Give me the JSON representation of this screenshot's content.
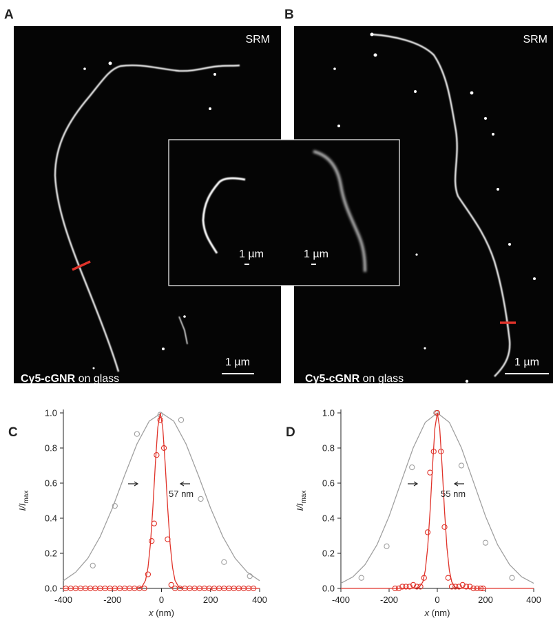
{
  "panels": [
    {
      "label": "A",
      "method": "SRM",
      "scale_bar": "1 µm",
      "caption_bold": "Cy5-cGNR",
      "caption_rest": " on glass"
    },
    {
      "label": "B",
      "method": "SRM",
      "scale_bar": "1 µm",
      "caption_bold": "Cy5-cGNR",
      "caption_rest": " on glass"
    }
  ],
  "inset": {
    "scale_bars": [
      "1 µm",
      "1 µm"
    ]
  },
  "chart_data": [
    {
      "type": "line",
      "panel_label": "C",
      "x_label": [
        "x",
        " (nm)"
      ],
      "y_label": [
        "I/I",
        "max"
      ],
      "annotation": "57 nm",
      "xlim": [
        -400,
        400
      ],
      "xticks": [
        -400,
        -200,
        0,
        200,
        400
      ],
      "ylim": [
        0,
        1
      ],
      "yticks": [
        {
          "value": 0,
          "label": "0.0"
        },
        {
          "value": 0.2,
          "label": "0.2"
        },
        {
          "value": 0.4,
          "label": "0.4"
        },
        {
          "value": 0.6,
          "label": "0.6"
        },
        {
          "value": 0.8,
          "label": "0.8"
        },
        {
          "value": 1,
          "label": "1.0"
        }
      ],
      "series": [
        {
          "style": "line",
          "color": "#a0a0a0",
          "x": [
            -400,
            -350,
            -300,
            -250,
            -200,
            -150,
            -100,
            -50,
            0,
            50,
            100,
            150,
            200,
            250,
            300,
            350,
            400
          ],
          "values": [
            0.044,
            0.092,
            0.172,
            0.295,
            0.458,
            0.645,
            0.823,
            0.953,
            1,
            0.953,
            0.823,
            0.645,
            0.458,
            0.295,
            0.172,
            0.092,
            0.044
          ]
        },
        {
          "style": "markers",
          "color": "#a0a0a0",
          "x": [
            -280,
            -190,
            -100,
            -5,
            80,
            160,
            255,
            360
          ],
          "values": [
            0.13,
            0.47,
            0.88,
            0.99,
            0.96,
            0.51,
            0.15,
            0.07
          ]
        },
        {
          "style": "line",
          "color": "#e0332a",
          "x": [
            -400,
            -105,
            -80,
            -65,
            -55,
            -45,
            -35,
            -25,
            -15,
            -5,
            5,
            15,
            25,
            35,
            45,
            55,
            70,
            95,
            400
          ],
          "values": [
            0,
            0,
            0.008,
            0.046,
            0.119,
            0.255,
            0.464,
            0.711,
            0.918,
            1,
            0.918,
            0.711,
            0.464,
            0.255,
            0.119,
            0.046,
            0.008,
            0,
            0
          ]
        },
        {
          "style": "markers",
          "color": "#e0332a",
          "x": [
            -390,
            -370,
            -350,
            -330,
            -310,
            -290,
            -270,
            -250,
            -230,
            -210,
            -190,
            -170,
            -150,
            -130,
            -110,
            -90,
            -70,
            -55,
            -40,
            -30,
            -20,
            -5,
            10,
            25,
            40,
            55,
            75,
            95,
            115,
            135,
            155,
            175,
            195,
            215,
            235,
            255,
            275,
            295,
            315,
            335,
            355,
            375
          ],
          "values": [
            0,
            0,
            0,
            0,
            0,
            0,
            0,
            0,
            0,
            0,
            0,
            0,
            0,
            0,
            0,
            0,
            0,
            0.08,
            0.27,
            0.37,
            0.76,
            0.96,
            0.8,
            0.28,
            0.02,
            0,
            0,
            0,
            0,
            0,
            0,
            0,
            0,
            0,
            0,
            0,
            0,
            0,
            0,
            0,
            0,
            0
          ]
        }
      ]
    },
    {
      "type": "line",
      "panel_label": "D",
      "x_label": [
        "x",
        " (nm)"
      ],
      "y_label": [
        "I/I",
        "max"
      ],
      "annotation": "55 nm",
      "xlim": [
        -400,
        400
      ],
      "xticks": [
        -400,
        -200,
        0,
        200,
        400
      ],
      "ylim": [
        0,
        1
      ],
      "yticks": [
        {
          "value": 0,
          "label": "0.0"
        },
        {
          "value": 0.2,
          "label": "0.2"
        },
        {
          "value": 0.4,
          "label": "0.4"
        },
        {
          "value": 0.6,
          "label": "0.6"
        },
        {
          "value": 0.8,
          "label": "0.8"
        },
        {
          "value": 1,
          "label": "1.0"
        }
      ],
      "series": [
        {
          "style": "line",
          "color": "#a0a0a0",
          "x": [
            -400,
            -350,
            -300,
            -250,
            -200,
            -150,
            -100,
            -50,
            0,
            50,
            100,
            150,
            200,
            250,
            300,
            350,
            400
          ],
          "values": [
            0.029,
            0.066,
            0.135,
            0.249,
            0.411,
            0.607,
            0.801,
            0.946,
            1,
            0.946,
            0.801,
            0.607,
            0.411,
            0.249,
            0.135,
            0.066,
            0.029
          ]
        },
        {
          "style": "markers",
          "color": "#a0a0a0",
          "x": [
            -315,
            -210,
            -105,
            -5,
            100,
            200,
            310
          ],
          "values": [
            0.06,
            0.24,
            0.69,
            1,
            0.7,
            0.26,
            0.06
          ]
        },
        {
          "style": "line",
          "color": "#e0332a",
          "x": [
            -400,
            -100,
            -75,
            -60,
            -50,
            -40,
            -30,
            -20,
            -10,
            0,
            10,
            20,
            30,
            40,
            50,
            60,
            75,
            100,
            400
          ],
          "values": [
            0,
            0,
            0.006,
            0.037,
            0.102,
            0.232,
            0.44,
            0.694,
            0.913,
            1,
            0.913,
            0.694,
            0.44,
            0.232,
            0.102,
            0.037,
            0.006,
            0,
            0
          ]
        },
        {
          "style": "markers",
          "color": "#e0332a",
          "x": [
            -175,
            -160,
            -145,
            -130,
            -115,
            -100,
            -85,
            -70,
            -55,
            -40,
            -30,
            -15,
            0,
            15,
            30,
            45,
            60,
            75,
            90,
            105,
            120,
            135,
            150,
            165,
            180,
            190
          ],
          "values": [
            0,
            0,
            0.01,
            0.01,
            0.01,
            0.02,
            0.01,
            0.01,
            0.06,
            0.32,
            0.66,
            0.78,
            1,
            0.78,
            0.35,
            0.06,
            0.01,
            0.01,
            0.01,
            0.02,
            0.01,
            0.01,
            0,
            0,
            0,
            0
          ]
        }
      ]
    }
  ]
}
